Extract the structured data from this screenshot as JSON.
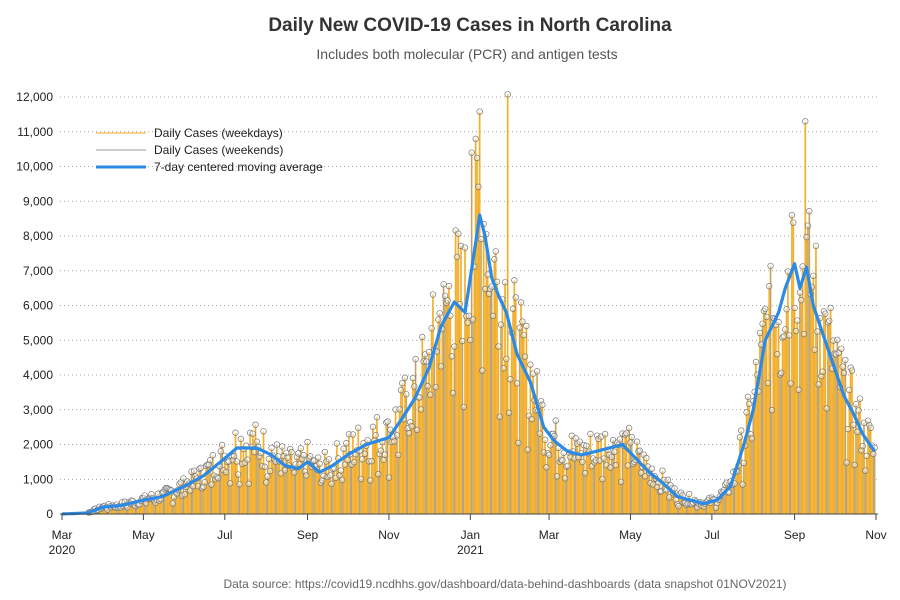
{
  "chart_data": {
    "type": "bar",
    "title": "Daily New COVID-19 Cases in North Carolina",
    "subtitle": "Includes both molecular (PCR) and antigen tests",
    "source": "Data source: https://covid19.ncdhhs.gov/dashboard/data-behind-dashboards (data snapshot 01NOV2021)",
    "ylim": [
      0,
      12000
    ],
    "yticks": [
      "0",
      "1,000",
      "2,000",
      "3,000",
      "4,000",
      "5,000",
      "6,000",
      "7,000",
      "8,000",
      "9,000",
      "10,000",
      "11,000",
      "12,000"
    ],
    "grid": "horizontal-dotted",
    "legend_position": "top-left",
    "x_range": [
      "2020-03-01",
      "2021-11-01"
    ],
    "xticks": [
      {
        "date": "2020-03-01",
        "label": "Mar",
        "year": "2020"
      },
      {
        "date": "2020-05-01",
        "label": "May",
        "year": ""
      },
      {
        "date": "2020-07-01",
        "label": "Jul",
        "year": ""
      },
      {
        "date": "2020-09-01",
        "label": "Sep",
        "year": ""
      },
      {
        "date": "2020-11-01",
        "label": "Nov",
        "year": ""
      },
      {
        "date": "2021-01-01",
        "label": "Jan",
        "year": "2021"
      },
      {
        "date": "2021-03-01",
        "label": "Mar",
        "year": ""
      },
      {
        "date": "2021-05-01",
        "label": "May",
        "year": ""
      },
      {
        "date": "2021-07-01",
        "label": "Jul",
        "year": ""
      },
      {
        "date": "2021-09-01",
        "label": "Sep",
        "year": ""
      },
      {
        "date": "2021-11-01",
        "label": "Nov",
        "year": ""
      }
    ],
    "series": [
      {
        "name": "Daily Cases (weekdays)",
        "color": "#f0a81e",
        "style": "needle"
      },
      {
        "name": "Daily Cases (weekends)",
        "color": "#999999",
        "style": "needle"
      },
      {
        "name": "7-day centered moving average",
        "color": "#2a8ae6",
        "style": "line",
        "points": [
          [
            "2020-03-01",
            0
          ],
          [
            "2020-03-20",
            30
          ],
          [
            "2020-04-01",
            200
          ],
          [
            "2020-04-15",
            250
          ],
          [
            "2020-05-01",
            400
          ],
          [
            "2020-05-15",
            500
          ],
          [
            "2020-06-01",
            800
          ],
          [
            "2020-06-15",
            1100
          ],
          [
            "2020-07-01",
            1600
          ],
          [
            "2020-07-10",
            1900
          ],
          [
            "2020-07-25",
            1900
          ],
          [
            "2020-08-05",
            1700
          ],
          [
            "2020-08-15",
            1400
          ],
          [
            "2020-08-25",
            1300
          ],
          [
            "2020-09-01",
            1500
          ],
          [
            "2020-09-10",
            1200
          ],
          [
            "2020-09-20",
            1400
          ],
          [
            "2020-10-01",
            1700
          ],
          [
            "2020-10-15",
            2000
          ],
          [
            "2020-11-01",
            2200
          ],
          [
            "2020-11-10",
            2700
          ],
          [
            "2020-11-20",
            3300
          ],
          [
            "2020-12-01",
            4200
          ],
          [
            "2020-12-10",
            5400
          ],
          [
            "2020-12-20",
            6100
          ],
          [
            "2020-12-28",
            5800
          ],
          [
            "2021-01-05",
            7800
          ],
          [
            "2021-01-08",
            8600
          ],
          [
            "2021-01-12",
            8000
          ],
          [
            "2021-01-17",
            6800
          ],
          [
            "2021-01-22",
            6300
          ],
          [
            "2021-01-28",
            5800
          ],
          [
            "2021-02-05",
            4600
          ],
          [
            "2021-02-15",
            3800
          ],
          [
            "2021-02-25",
            2500
          ],
          [
            "2021-03-05",
            2100
          ],
          [
            "2021-03-15",
            1800
          ],
          [
            "2021-03-25",
            1700
          ],
          [
            "2021-04-05",
            1800
          ],
          [
            "2021-04-15",
            1900
          ],
          [
            "2021-04-25",
            2000
          ],
          [
            "2021-05-05",
            1600
          ],
          [
            "2021-05-15",
            1200
          ],
          [
            "2021-05-25",
            900
          ],
          [
            "2021-06-05",
            500
          ],
          [
            "2021-06-15",
            400
          ],
          [
            "2021-06-25",
            300
          ],
          [
            "2021-07-05",
            400
          ],
          [
            "2021-07-15",
            800
          ],
          [
            "2021-07-25",
            2000
          ],
          [
            "2021-08-01",
            3000
          ],
          [
            "2021-08-10",
            5000
          ],
          [
            "2021-08-15",
            5400
          ],
          [
            "2021-08-20",
            5800
          ],
          [
            "2021-08-25",
            6500
          ],
          [
            "2021-09-01",
            7200
          ],
          [
            "2021-09-05",
            6500
          ],
          [
            "2021-09-10",
            7100
          ],
          [
            "2021-09-15",
            6000
          ],
          [
            "2021-09-22",
            5200
          ],
          [
            "2021-09-30",
            4300
          ],
          [
            "2021-10-08",
            3400
          ],
          [
            "2021-10-15",
            2900
          ],
          [
            "2021-10-22",
            2300
          ],
          [
            "2021-10-31",
            1800
          ]
        ]
      }
    ],
    "notable_values": [
      {
        "date": "2021-01-08",
        "value": 11580,
        "kind": "weekend"
      },
      {
        "date": "2021-01-29",
        "value": 12080,
        "kind": "weekday"
      },
      {
        "date": "2021-09-09",
        "value": 11300,
        "kind": "weekend"
      },
      {
        "date": "2021-01-02",
        "value": 10400,
        "kind": "weekday"
      },
      {
        "date": "2021-08-30",
        "value": 8600,
        "kind": "weekday"
      }
    ]
  }
}
